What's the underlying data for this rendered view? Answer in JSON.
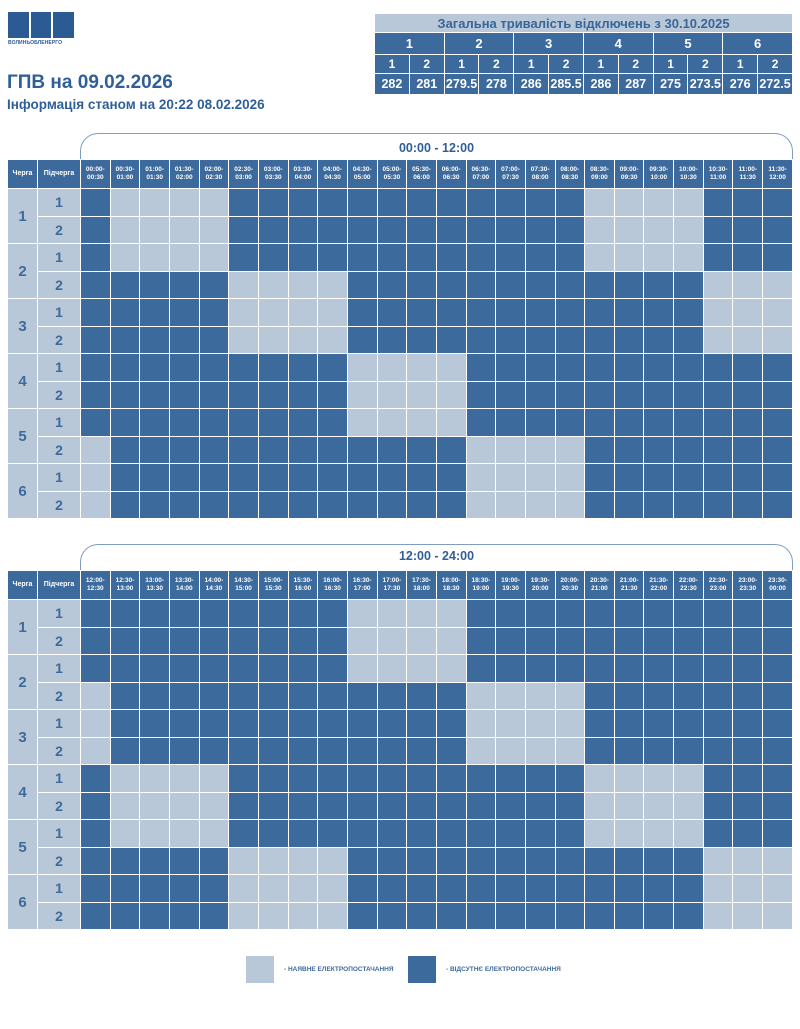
{
  "header": {
    "logo_text": "ВОЛИНЬОБЛЕНЕРГО",
    "title": "ГПВ на 09.02.2026",
    "subtitle": "Інформація станом на 20:22 08.02.2026"
  },
  "summary": {
    "caption": "Загальна тривалість відключень з 30.10.2025",
    "queues": [
      "1",
      "2",
      "3",
      "4",
      "5",
      "6"
    ],
    "subqueues": [
      "1",
      "2",
      "1",
      "2",
      "1",
      "2",
      "1",
      "2",
      "1",
      "2",
      "1",
      "2"
    ],
    "values": [
      "282",
      "281",
      "279.5",
      "278",
      "286",
      "285.5",
      "286",
      "287",
      "275",
      "273.5",
      "276",
      "272.5"
    ]
  },
  "colors": {
    "power_on": "#b9c8d8",
    "power_off": "#3d6a9c"
  },
  "grid": {
    "col_queue": "Черга",
    "col_subqueue": "Підчерга",
    "tables": [
      {
        "range": "00:00 - 12:00",
        "slots": [
          "00:00-\n00:30",
          "00:30-\n01:00",
          "01:00-\n01:30",
          "01:30-\n02:00",
          "02:00-\n02:30",
          "02:30-\n03:00",
          "03:00-\n03:30",
          "03:30-\n04:00",
          "04:00-\n04:30",
          "04:30-\n05:00",
          "05:00-\n05:30",
          "05:30-\n06:00",
          "06:00-\n06:30",
          "06:30-\n07:00",
          "07:00-\n07:30",
          "07:30-\n08:00",
          "08:00-\n08:30",
          "08:30-\n09:00",
          "09:00-\n09:30",
          "09:30-\n10:00",
          "10:00-\n10:30",
          "10:30-\n11:00",
          "11:00-\n11:30",
          "11:30-\n12:00"
        ],
        "rows": [
          {
            "queue": "1",
            "sub": "1",
            "cells": "DLLLLDDDDDDDDDDDDLLLLDDD"
          },
          {
            "queue": "1",
            "sub": "2",
            "cells": "DLLLLDDDDDDDDDDDDLLLLDDD"
          },
          {
            "queue": "2",
            "sub": "1",
            "cells": "DLLLLDDDDDDDDDDDDLLLLDDD"
          },
          {
            "queue": "2",
            "sub": "2",
            "cells": "DDDDDLLLLDDDDDDDDDDDDLLL"
          },
          {
            "queue": "3",
            "sub": "1",
            "cells": "DDDDDLLLLDDDDDDDDDDDDLLL"
          },
          {
            "queue": "3",
            "sub": "2",
            "cells": "DDDDDLLLLDDDDDDDDDDDDLLL"
          },
          {
            "queue": "4",
            "sub": "1",
            "cells": "DDDDDDDDDLLLLDDDDDDDDDDD"
          },
          {
            "queue": "4",
            "sub": "2",
            "cells": "DDDDDDDDDLLLLDDDDDDDDDDD"
          },
          {
            "queue": "5",
            "sub": "1",
            "cells": "DDDDDDDDDLLLLDDDDDDDDDDD"
          },
          {
            "queue": "5",
            "sub": "2",
            "cells": "LDDDDDDDDDDDDLLLLDDDDDDD"
          },
          {
            "queue": "6",
            "sub": "1",
            "cells": "LDDDDDDDDDDDDLLLLDDDDDDD"
          },
          {
            "queue": "6",
            "sub": "2",
            "cells": "LDDDDDDDDDDDDLLLLDDDDDDD"
          }
        ]
      },
      {
        "range": "12:00 - 24:00",
        "slots": [
          "12:00-\n12:30",
          "12:30-\n13:00",
          "13:00-\n13:30",
          "13:30-\n14:00",
          "14:00-\n14:30",
          "14:30-\n15:00",
          "15:00-\n15:30",
          "15:30-\n16:00",
          "16:00-\n16:30",
          "16:30-\n17:00",
          "17:00-\n17:30",
          "17:30-\n18:00",
          "18:00-\n18:30",
          "18:30-\n19:00",
          "19:00-\n19:30",
          "19:30-\n20:00",
          "20:00-\n20:30",
          "20:30-\n21:00",
          "21:00-\n21:30",
          "21:30-\n22:00",
          "22:00-\n22:30",
          "22:30-\n23:00",
          "23:00-\n23:30",
          "23:30-\n00:00"
        ],
        "rows": [
          {
            "queue": "1",
            "sub": "1",
            "cells": "DDDDDDDDDLLLLDDDDDDDDDDD"
          },
          {
            "queue": "1",
            "sub": "2",
            "cells": "DDDDDDDDDLLLLDDDDDDDDDDD"
          },
          {
            "queue": "2",
            "sub": "1",
            "cells": "DDDDDDDDDLLLLDDDDDDDDDDD"
          },
          {
            "queue": "2",
            "sub": "2",
            "cells": "LDDDDDDDDDDDDLLLLDDDDDDD"
          },
          {
            "queue": "3",
            "sub": "1",
            "cells": "LDDDDDDDDDDDDLLLLDDDDDDD"
          },
          {
            "queue": "3",
            "sub": "2",
            "cells": "LDDDDDDDDDDDDLLLLDDDDDDD"
          },
          {
            "queue": "4",
            "sub": "1",
            "cells": "DLLLLDDDDDDDDDDDDLLLLDDD"
          },
          {
            "queue": "4",
            "sub": "2",
            "cells": "DLLLLDDDDDDDDDDDDLLLLDDD"
          },
          {
            "queue": "5",
            "sub": "1",
            "cells": "DLLLLDDDDDDDDDDDDLLLLDDD"
          },
          {
            "queue": "5",
            "sub": "2",
            "cells": "DDDDDLLLLDDDDDDDDDDDDLLL"
          },
          {
            "queue": "6",
            "sub": "1",
            "cells": "DDDDDLLLLDDDDDDDDDDDDLLL"
          },
          {
            "queue": "6",
            "sub": "2",
            "cells": "DDDDDLLLLDDDDDDDDDDDDLLL"
          }
        ]
      }
    ]
  },
  "legend": {
    "on_label": "- НАЯВНЕ ЕЛЕКТРОПОСТАЧАННЯ",
    "off_label": "- ВІДСУТНЄ ЕЛЕКТРОПОСТАЧАННЯ"
  }
}
